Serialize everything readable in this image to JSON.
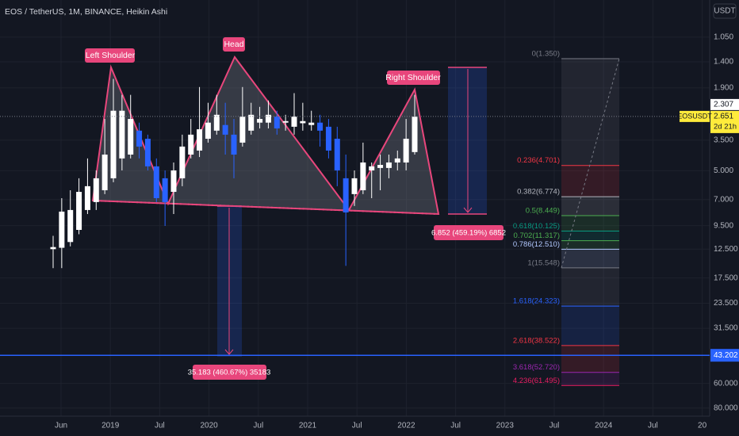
{
  "chart_data": {
    "type": "candlestick",
    "title": "EOS / TetherUS, 1M, BINANCE, Heikin Ashi",
    "currency": "USDT",
    "log_y": true,
    "y_inverted": true,
    "ylim": [
      0.68,
      88
    ],
    "yticks": [
      {
        "value": 1.05,
        "label": "1.050"
      },
      {
        "value": 1.4,
        "label": "1.400"
      },
      {
        "value": 1.9,
        "label": "1.900"
      },
      {
        "value": 3.5,
        "label": "3.500"
      },
      {
        "value": 5,
        "label": "5.000"
      },
      {
        "value": 7,
        "label": "7.000"
      },
      {
        "value": 9.5,
        "label": "9.500"
      },
      {
        "value": 12.5,
        "label": "12.500"
      },
      {
        "value": 17.5,
        "label": "17.500"
      },
      {
        "value": 23.5,
        "label": "23.500"
      },
      {
        "value": 31.5,
        "label": "31.500"
      },
      {
        "value": 60,
        "label": "60.000"
      },
      {
        "value": 80,
        "label": "80.000"
      }
    ],
    "x_labels": [
      "Jun",
      "2019",
      "Jul",
      "2020",
      "Jul",
      "2021",
      "Jul",
      "2022",
      "Jul",
      "2023",
      "Jul",
      "2024",
      "Jul",
      "20"
    ],
    "grid": true,
    "up_color": "#ffffff",
    "down_color": "#2962ff",
    "candles": {
      "open": [
        12.5,
        12.3,
        11.5,
        9.98,
        7.91,
        7.21,
        6.28,
        5.46,
        4.33,
        4.14,
        3.13,
        3.44,
        4.75,
        5.46,
        6.4,
        5.46,
        4.14,
        3.95,
        3.44,
        3.13,
        2.93,
        3.28,
        3.6,
        3.13,
        2.85,
        2.85,
        2.66,
        2.85,
        2.99,
        2.87,
        2.93,
        2.85,
        2.99,
        3.44,
        5.46,
        6.57,
        6.28,
        4.98,
        4.84,
        4.84,
        4.54,
        4.54,
        4.02
      ],
      "high": [
        15.6,
        15.6,
        12.1,
        10.5,
        8.29,
        7.91,
        6.57,
        5.72,
        4.98,
        4.33,
        4.33,
        4.98,
        7.21,
        9.53,
        8.29,
        5.99,
        4.33,
        4.26,
        3.6,
        3.28,
        4.14,
        5.46,
        3.77,
        3.28,
        3.05,
        3.05,
        3.28,
        3.13,
        3.28,
        3.13,
        3.13,
        3.77,
        4.33,
        5.99,
        15.2,
        7.55,
        6.57,
        6.89,
        6.28,
        5.46,
        4.98,
        4.98,
        4.14
      ],
      "low": [
        10.7,
        6.89,
        6.28,
        5.46,
        4.33,
        4.98,
        2.73,
        1.71,
        2.06,
        2.06,
        2.85,
        3.28,
        4.33,
        4.98,
        4.54,
        3.28,
        2.73,
        1.88,
        2.26,
        2.06,
        2.26,
        2.73,
        1.88,
        2.26,
        2.37,
        2.2,
        2.48,
        2.6,
        2.02,
        2.26,
        2.48,
        2.6,
        2.73,
        2.99,
        4.14,
        4.98,
        3.6,
        4.54,
        4.14,
        4.14,
        3.95,
        2.73,
        2.06
      ],
      "close": [
        12.2,
        8.06,
        7.91,
        6.4,
        5.99,
        5.46,
        4.14,
        2.48,
        2.48,
        2.73,
        3.77,
        4.75,
        6.89,
        7.21,
        4.98,
        3.77,
        3.28,
        3.08,
        2.85,
        2.6,
        3.28,
        4.14,
        2.66,
        2.6,
        2.73,
        2.6,
        3.05,
        2.8,
        2.66,
        2.8,
        2.85,
        3.13,
        3.95,
        4.98,
        8.14,
        5.46,
        4.54,
        4.75,
        4.67,
        4.54,
        4.33,
        3.44,
        2.66
      ]
    },
    "last_price": {
      "value": 2.651,
      "label": "2.651",
      "symbol": "EOSUSDT",
      "countdown": "2d 21h"
    },
    "price_marker": {
      "value": 2.307,
      "label": "2.307"
    },
    "horizontal_line": {
      "value": 43.202,
      "label": "43.202",
      "color": "#2962ff"
    },
    "annotations": [
      "Left Shoulder",
      "Head",
      "Right Shoulder"
    ],
    "measurements": [
      "6.852 (459.19%) 6852",
      "35.183 (460.67%) 35183"
    ],
    "fib_levels": [
      {
        "value": 1.35,
        "label": "0(1.350)",
        "color": "#787b86"
      },
      {
        "value": 4.701,
        "label": "0.236(4.701)",
        "color": "#f23645"
      },
      {
        "value": 6.774,
        "label": "0.382(6.774)",
        "color": "#b2b5be"
      },
      {
        "value": 8.449,
        "label": "0.5(8.449)",
        "color": "#4caf50"
      },
      {
        "value": 10.125,
        "label": "0.618(10.125)",
        "color": "#089981"
      },
      {
        "value": 11.317,
        "label": "0.702(11.317)",
        "color": "#4caf50"
      },
      {
        "value": 12.51,
        "label": "0.786(12.510)",
        "color": "#b2c8ff"
      },
      {
        "value": 15.548,
        "label": "1(15.548)",
        "color": "#787b86"
      },
      {
        "value": 24.323,
        "label": "1.618(24.323)",
        "color": "#2962ff"
      },
      {
        "value": 38.522,
        "label": "2.618(38.522)",
        "color": "#f23645"
      },
      {
        "value": 52.72,
        "label": "3.618(52.720)",
        "color": "#9c27b0"
      },
      {
        "value": 61.495,
        "label": "4.236(61.495)",
        "color": "#e91e63"
      }
    ]
  }
}
